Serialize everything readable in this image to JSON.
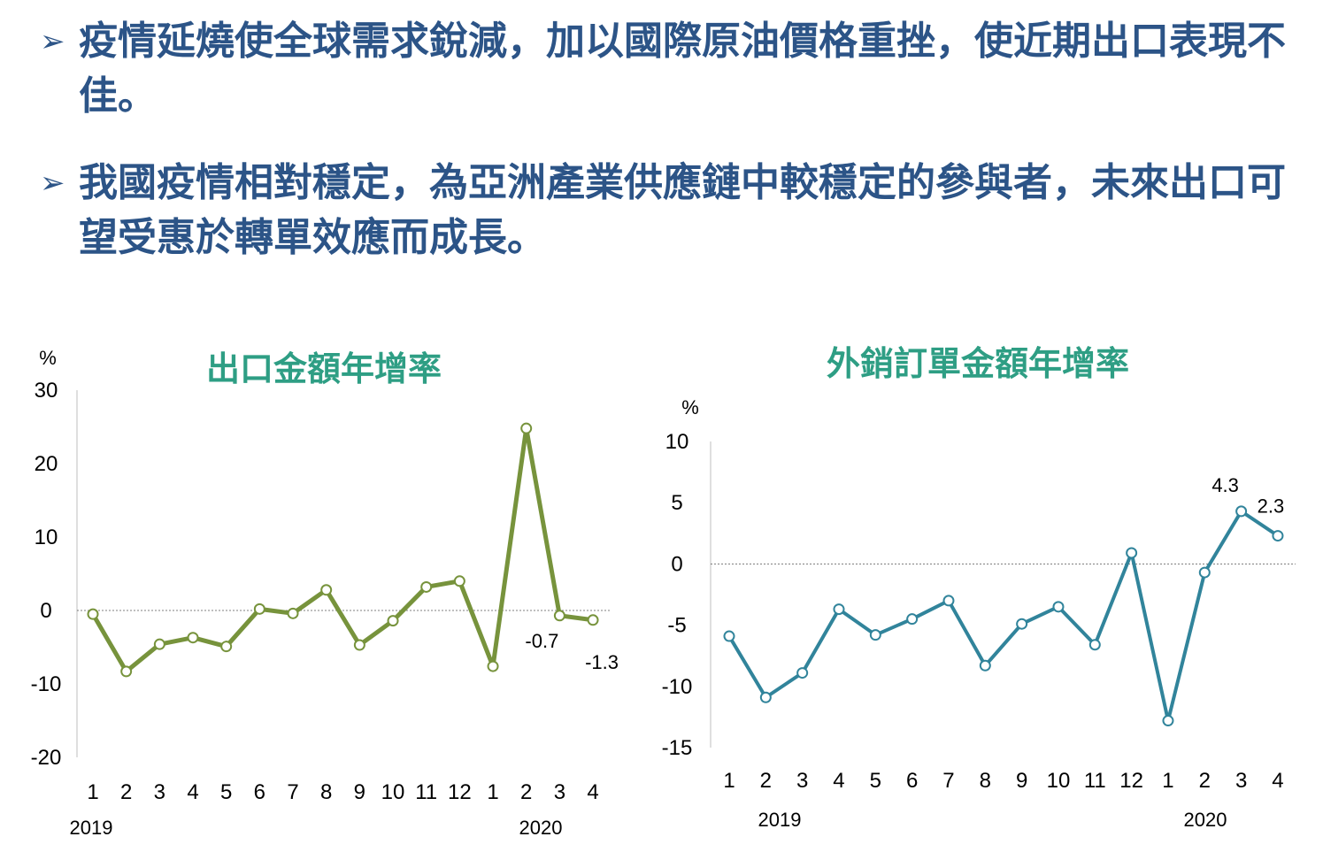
{
  "bullets": [
    {
      "icon": "arrow-bullet-icon",
      "text": "疫情延燒使全球需求銳減，加以國際原油價格重挫，使近期出口表現不佳。"
    },
    {
      "icon": "arrow-bullet-icon",
      "text": "我國疫情相對穩定，為亞洲產業供應鏈中較穩定的參與者，未來出口可望受惠於轉單效應而成長。"
    }
  ],
  "chart_data": [
    {
      "type": "line",
      "title": "出口金額年增率",
      "ylabel": "%",
      "ylim": [
        -20,
        30
      ],
      "yticks": [
        "30",
        "20",
        "10",
        "0",
        "-10",
        "-20"
      ],
      "categories": [
        "1",
        "2",
        "3",
        "4",
        "5",
        "6",
        "7",
        "8",
        "9",
        "10",
        "11",
        "12",
        "1",
        "2",
        "3",
        "4"
      ],
      "year_labels": [
        "2019",
        "2020"
      ],
      "values": [
        -0.5,
        -8.3,
        -4.6,
        -3.7,
        -4.9,
        0.2,
        -0.4,
        2.8,
        -4.7,
        -1.4,
        3.2,
        4.0,
        -7.6,
        24.8,
        -0.7,
        -1.3
      ],
      "data_labels": {
        "14": "-0.7",
        "15": "-1.3"
      },
      "color": "#77933c",
      "zero_line": true
    },
    {
      "type": "line",
      "title": "外銷訂單金額年增率",
      "ylabel": "%",
      "ylim": [
        -15,
        10
      ],
      "yticks": [
        "10",
        "5",
        "0",
        "-5",
        "-10",
        "-15"
      ],
      "categories": [
        "1",
        "2",
        "3",
        "4",
        "5",
        "6",
        "7",
        "8",
        "9",
        "10",
        "11",
        "12",
        "1",
        "2",
        "3",
        "4"
      ],
      "year_labels": [
        "2019",
        "2020"
      ],
      "values": [
        -5.9,
        -10.9,
        -8.9,
        -3.7,
        -5.8,
        -4.5,
        -3.0,
        -8.3,
        -4.9,
        -3.5,
        -6.6,
        0.9,
        -12.8,
        -0.7,
        4.3,
        2.3
      ],
      "data_labels": {
        "14": "4.3",
        "15": "2.3"
      },
      "color": "#31849b",
      "zero_line": true
    }
  ]
}
